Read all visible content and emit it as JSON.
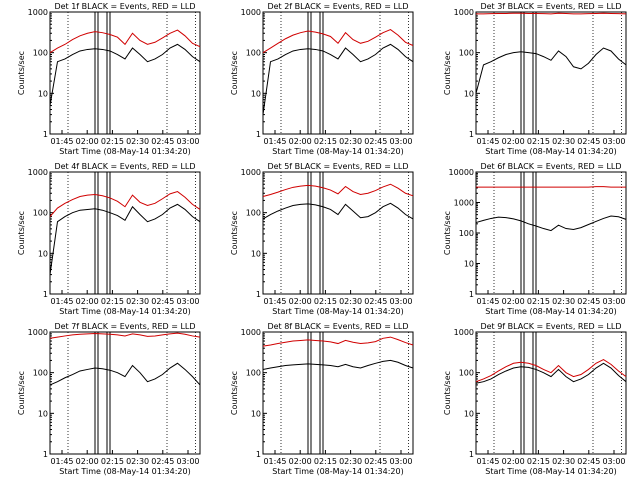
{
  "chart_data": [
    {
      "type": "line",
      "title": "Det 1f BLACK = Events, RED = LLD",
      "xlabel": "Start Time (08-May-14 01:34:20)",
      "ylabel": "Counts/sec",
      "yscale": "log",
      "ylim": [
        1,
        1000
      ],
      "xticks": [
        "01:45",
        "02:00",
        "02:15",
        "02:30",
        "02:45",
        "03:00"
      ],
      "series": [
        {
          "color": "#000000",
          "x": [
            0,
            5,
            10,
            15,
            20,
            25,
            30,
            35,
            40,
            45,
            50,
            55,
            60,
            65,
            70,
            75,
            80,
            85,
            90,
            95,
            100
          ],
          "y": [
            5,
            60,
            70,
            90,
            110,
            120,
            125,
            120,
            110,
            90,
            70,
            130,
            90,
            60,
            70,
            90,
            130,
            160,
            120,
            80,
            60
          ]
        },
        {
          "color": "#d00000",
          "x": [
            0,
            5,
            10,
            15,
            20,
            25,
            30,
            35,
            40,
            45,
            50,
            55,
            60,
            65,
            70,
            75,
            80,
            85,
            90,
            95,
            100
          ],
          "y": [
            100,
            130,
            160,
            210,
            260,
            300,
            330,
            310,
            280,
            240,
            160,
            300,
            200,
            160,
            180,
            230,
            300,
            360,
            260,
            170,
            140
          ]
        }
      ]
    },
    {
      "type": "line",
      "title": "Det 2f BLACK = Events, RED = LLD",
      "xlabel": "Start Time (08-May-14 01:34:20)",
      "ylabel": "Counts/sec",
      "yscale": "log",
      "ylim": [
        1,
        1000
      ],
      "xticks": [
        "01:45",
        "02:00",
        "02:15",
        "02:30",
        "02:45",
        "03:00"
      ],
      "series": [
        {
          "color": "#000000",
          "x": [
            0,
            5,
            10,
            15,
            20,
            25,
            30,
            35,
            40,
            45,
            50,
            55,
            60,
            65,
            70,
            75,
            80,
            85,
            90,
            95,
            100
          ],
          "y": [
            3,
            60,
            70,
            90,
            110,
            120,
            125,
            120,
            110,
            90,
            70,
            130,
            90,
            60,
            70,
            90,
            130,
            160,
            120,
            80,
            60
          ]
        },
        {
          "color": "#d00000",
          "x": [
            0,
            5,
            10,
            15,
            20,
            25,
            30,
            35,
            40,
            45,
            50,
            55,
            60,
            65,
            70,
            75,
            80,
            85,
            90,
            95,
            100
          ],
          "y": [
            100,
            130,
            170,
            220,
            270,
            310,
            340,
            320,
            290,
            250,
            170,
            310,
            210,
            170,
            190,
            240,
            310,
            370,
            270,
            180,
            150
          ]
        }
      ]
    },
    {
      "type": "line",
      "title": "Det 3f BLACK = Events, RED = LLD",
      "xlabel": "Start Time (08-May-14 01:34:20)",
      "ylabel": "Counts/sec",
      "yscale": "log",
      "ylim": [
        1,
        1000
      ],
      "xticks": [
        "01:45",
        "02:00",
        "02:15",
        "02:30",
        "02:45",
        "03:00"
      ],
      "series": [
        {
          "color": "#000000",
          "x": [
            0,
            5,
            10,
            15,
            20,
            25,
            30,
            35,
            40,
            45,
            50,
            55,
            60,
            65,
            70,
            75,
            80,
            85,
            90,
            95,
            100
          ],
          "y": [
            10,
            50,
            60,
            75,
            90,
            100,
            105,
            100,
            95,
            80,
            65,
            110,
            80,
            45,
            40,
            55,
            90,
            130,
            110,
            70,
            50
          ]
        },
        {
          "color": "#d00000",
          "x": [
            0,
            5,
            10,
            15,
            20,
            25,
            30,
            35,
            40,
            45,
            50,
            55,
            60,
            65,
            70,
            75,
            80,
            85,
            90,
            95,
            100
          ],
          "y": [
            900,
            900,
            910,
            920,
            920,
            930,
            930,
            920,
            920,
            910,
            900,
            930,
            920,
            900,
            900,
            910,
            920,
            930,
            920,
            910,
            900
          ]
        }
      ]
    },
    {
      "type": "line",
      "title": "Det 4f BLACK = Events, RED = LLD",
      "xlabel": "Start Time (08-May-14 01:34:20)",
      "ylabel": "Counts/sec",
      "yscale": "log",
      "ylim": [
        1,
        1000
      ],
      "xticks": [
        "01:45",
        "02:00",
        "02:15",
        "02:30",
        "02:45",
        "03:00"
      ],
      "series": [
        {
          "color": "#000000",
          "x": [
            0,
            5,
            10,
            15,
            20,
            25,
            30,
            35,
            40,
            45,
            50,
            55,
            60,
            65,
            70,
            75,
            80,
            85,
            90,
            95,
            100
          ],
          "y": [
            3,
            60,
            80,
            100,
            115,
            120,
            125,
            115,
            100,
            85,
            65,
            140,
            90,
            60,
            70,
            90,
            130,
            160,
            120,
            80,
            60
          ]
        },
        {
          "color": "#d00000",
          "x": [
            0,
            5,
            10,
            15,
            20,
            25,
            30,
            35,
            40,
            45,
            50,
            55,
            60,
            65,
            70,
            75,
            80,
            85,
            90,
            95,
            100
          ],
          "y": [
            80,
            130,
            170,
            210,
            250,
            270,
            280,
            260,
            230,
            190,
            140,
            270,
            180,
            150,
            170,
            220,
            290,
            330,
            240,
            160,
            120
          ]
        }
      ]
    },
    {
      "type": "line",
      "title": "Det 5f BLACK = Events, RED = LLD",
      "xlabel": "Start Time (08-May-14 01:34:20)",
      "ylabel": "Counts/sec",
      "yscale": "log",
      "ylim": [
        1,
        1000
      ],
      "xticks": [
        "01:45",
        "02:00",
        "02:15",
        "02:30",
        "02:45",
        "03:00"
      ],
      "series": [
        {
          "color": "#000000",
          "x": [
            0,
            5,
            10,
            15,
            20,
            25,
            30,
            35,
            40,
            45,
            50,
            55,
            60,
            65,
            70,
            75,
            80,
            85,
            90,
            95,
            100
          ],
          "y": [
            70,
            90,
            110,
            130,
            150,
            160,
            165,
            155,
            140,
            120,
            90,
            160,
            110,
            75,
            80,
            100,
            140,
            170,
            130,
            90,
            70
          ]
        },
        {
          "color": "#d00000",
          "x": [
            0,
            5,
            10,
            15,
            20,
            25,
            30,
            35,
            40,
            45,
            50,
            55,
            60,
            65,
            70,
            75,
            80,
            85,
            90,
            95,
            100
          ],
          "y": [
            250,
            280,
            320,
            370,
            420,
            450,
            470,
            450,
            410,
            360,
            290,
            440,
            330,
            280,
            300,
            350,
            430,
            500,
            400,
            300,
            260
          ]
        }
      ]
    },
    {
      "type": "line",
      "title": "Det 6f BLACK = Events, RED = LLD",
      "xlabel": "Start Time (08-May-14 01:34:20)",
      "ylabel": "Counts/sec",
      "yscale": "log",
      "ylim": [
        1,
        10000
      ],
      "xticks": [
        "01:45",
        "02:00",
        "02:15",
        "02:30",
        "02:45",
        "03:00"
      ],
      "series": [
        {
          "color": "#000000",
          "x": [
            0,
            5,
            10,
            15,
            20,
            25,
            30,
            35,
            40,
            45,
            50,
            55,
            60,
            65,
            70,
            75,
            80,
            85,
            90,
            95,
            100
          ],
          "y": [
            220,
            260,
            300,
            330,
            320,
            290,
            250,
            200,
            170,
            140,
            120,
            180,
            140,
            130,
            150,
            190,
            240,
            300,
            360,
            340,
            280
          ]
        },
        {
          "color": "#d00000",
          "x": [
            0,
            5,
            10,
            15,
            20,
            25,
            30,
            35,
            40,
            45,
            50,
            55,
            60,
            65,
            70,
            75,
            80,
            85,
            90,
            95,
            100
          ],
          "y": [
            3200,
            3200,
            3200,
            3200,
            3200,
            3200,
            3200,
            3200,
            3200,
            3200,
            3200,
            3200,
            3200,
            3200,
            3200,
            3200,
            3300,
            3300,
            3200,
            3200,
            3200
          ]
        }
      ]
    },
    {
      "type": "line",
      "title": "Det 7f BLACK = Events, RED = LLD",
      "xlabel": "Start Time (08-May-14 01:34:20)",
      "ylabel": "Counts/sec",
      "yscale": "log",
      "ylim": [
        1,
        1000
      ],
      "xticks": [
        "01:45",
        "02:00",
        "02:15",
        "02:30",
        "02:45",
        "03:00"
      ],
      "series": [
        {
          "color": "#000000",
          "x": [
            0,
            5,
            10,
            15,
            20,
            25,
            30,
            35,
            40,
            45,
            50,
            55,
            60,
            65,
            70,
            75,
            80,
            85,
            90,
            95,
            100
          ],
          "y": [
            50,
            60,
            75,
            90,
            110,
            120,
            130,
            125,
            115,
            100,
            80,
            150,
            100,
            60,
            70,
            90,
            130,
            170,
            120,
            80,
            50
          ]
        },
        {
          "color": "#d00000",
          "x": [
            0,
            5,
            10,
            15,
            20,
            25,
            30,
            35,
            40,
            45,
            50,
            55,
            60,
            65,
            70,
            75,
            80,
            85,
            90,
            95,
            100
          ],
          "y": [
            700,
            750,
            800,
            850,
            880,
            900,
            920,
            900,
            880,
            850,
            800,
            900,
            850,
            780,
            800,
            850,
            900,
            940,
            880,
            800,
            750
          ]
        }
      ]
    },
    {
      "type": "line",
      "title": "Det 8f BLACK = Events, RED = LLD",
      "xlabel": "Start Time (08-May-14 01:34:20)",
      "ylabel": "Counts/sec",
      "yscale": "log",
      "ylim": [
        1,
        1000
      ],
      "xticks": [
        "01:45",
        "02:00",
        "02:15",
        "02:30",
        "02:45",
        "03:00"
      ],
      "series": [
        {
          "color": "#000000",
          "x": [
            0,
            5,
            10,
            15,
            20,
            25,
            30,
            35,
            40,
            45,
            50,
            55,
            60,
            65,
            70,
            75,
            80,
            85,
            90,
            95,
            100
          ],
          "y": [
            120,
            130,
            140,
            150,
            155,
            160,
            165,
            160,
            155,
            150,
            140,
            160,
            140,
            130,
            150,
            170,
            190,
            200,
            180,
            150,
            130
          ]
        },
        {
          "color": "#d00000",
          "x": [
            0,
            5,
            10,
            15,
            20,
            25,
            30,
            35,
            40,
            45,
            50,
            55,
            60,
            65,
            70,
            75,
            80,
            85,
            90,
            95,
            100
          ],
          "y": [
            450,
            480,
            520,
            560,
            600,
            620,
            640,
            620,
            600,
            570,
            520,
            620,
            560,
            520,
            540,
            580,
            700,
            750,
            650,
            550,
            480
          ]
        }
      ]
    },
    {
      "type": "line",
      "title": "Det 9f BLACK = Events, RED = LLD",
      "xlabel": "Start Time (08-May-14 01:34:20)",
      "ylabel": "Counts/sec",
      "yscale": "log",
      "ylim": [
        1,
        1000
      ],
      "xticks": [
        "01:45",
        "02:00",
        "02:15",
        "02:30",
        "02:45",
        "03:00"
      ],
      "series": [
        {
          "color": "#000000",
          "x": [
            0,
            5,
            10,
            15,
            20,
            25,
            30,
            35,
            40,
            45,
            50,
            55,
            60,
            65,
            70,
            75,
            80,
            85,
            90,
            95,
            100
          ],
          "y": [
            55,
            60,
            70,
            90,
            110,
            130,
            140,
            135,
            120,
            100,
            80,
            120,
            80,
            60,
            70,
            90,
            130,
            170,
            130,
            85,
            60
          ]
        },
        {
          "color": "#d00000",
          "x": [
            0,
            5,
            10,
            15,
            20,
            25,
            30,
            35,
            40,
            45,
            50,
            55,
            60,
            65,
            70,
            75,
            80,
            85,
            90,
            95,
            100
          ],
          "y": [
            60,
            70,
            85,
            110,
            140,
            170,
            180,
            170,
            150,
            120,
            100,
            150,
            100,
            80,
            90,
            120,
            170,
            210,
            160,
            110,
            80
          ]
        }
      ]
    }
  ]
}
